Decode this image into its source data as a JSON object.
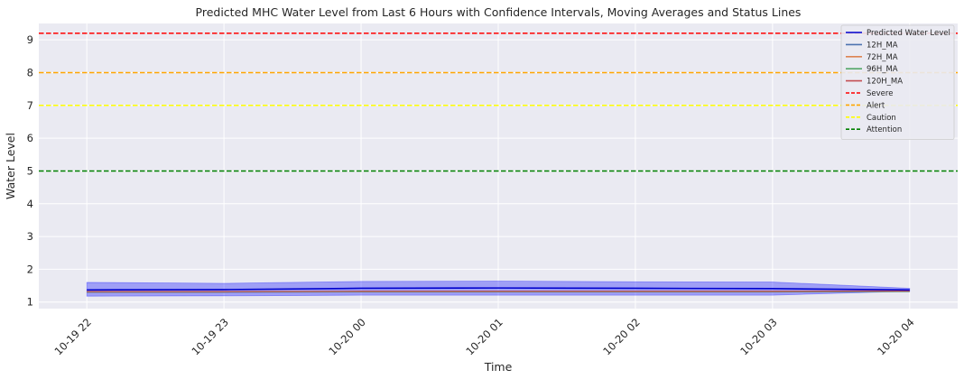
{
  "chart_data": {
    "type": "line",
    "title": "Predicted MHC Water Level from Last 6 Hours with Confidence Intervals, Moving Averages and Status Lines",
    "xlabel": "Time",
    "ylabel": "Water Level",
    "x": [
      "10-19 22",
      "10-19 23",
      "10-20 00",
      "10-20 01",
      "10-20 02",
      "10-20 03",
      "10-20 04"
    ],
    "xlim": [
      -0.35,
      6.35
    ],
    "ylim": [
      0.8,
      9.5
    ],
    "yticks": [
      1,
      2,
      3,
      4,
      5,
      6,
      7,
      8,
      9
    ],
    "grid": true,
    "legend_position": "top-right",
    "series": [
      {
        "name": "Predicted Water Level",
        "color": "#0000cc",
        "style": "solid",
        "values": [
          1.37,
          1.38,
          1.42,
          1.43,
          1.42,
          1.41,
          1.37
        ]
      },
      {
        "name": "12H_MA",
        "color": "#4c72b0",
        "style": "solid",
        "values": [
          1.3,
          1.3,
          1.31,
          1.31,
          1.31,
          1.31,
          1.32
        ]
      },
      {
        "name": "72H_MA",
        "color": "#dd8452",
        "style": "solid",
        "values": [
          1.31,
          1.31,
          1.32,
          1.32,
          1.32,
          1.32,
          1.33
        ]
      },
      {
        "name": "96H_MA",
        "color": "#55a868",
        "style": "solid",
        "values": [
          1.31,
          1.31,
          1.32,
          1.32,
          1.32,
          1.32,
          1.33
        ]
      },
      {
        "name": "120H_MA",
        "color": "#c44e52",
        "style": "solid",
        "values": [
          1.32,
          1.32,
          1.33,
          1.33,
          1.33,
          1.33,
          1.34
        ]
      }
    ],
    "confidence_interval": {
      "color": "#0000ff",
      "lower": [
        1.18,
        1.19,
        1.21,
        1.21,
        1.21,
        1.21,
        1.33
      ],
      "upper": [
        1.6,
        1.57,
        1.63,
        1.64,
        1.62,
        1.61,
        1.42
      ]
    },
    "status_lines": [
      {
        "name": "Severe",
        "value": 9.2,
        "color": "#ff0000"
      },
      {
        "name": "Alert",
        "value": 8.0,
        "color": "#ffa500"
      },
      {
        "name": "Caution",
        "value": 7.0,
        "color": "#ffff00"
      },
      {
        "name": "Attention",
        "value": 5.0,
        "color": "#008000"
      }
    ],
    "legend": [
      "Predicted Water Level",
      "12H_MA",
      "72H_MA",
      "96H_MA",
      "120H_MA",
      "Severe",
      "Alert",
      "Caution",
      "Attention"
    ]
  }
}
